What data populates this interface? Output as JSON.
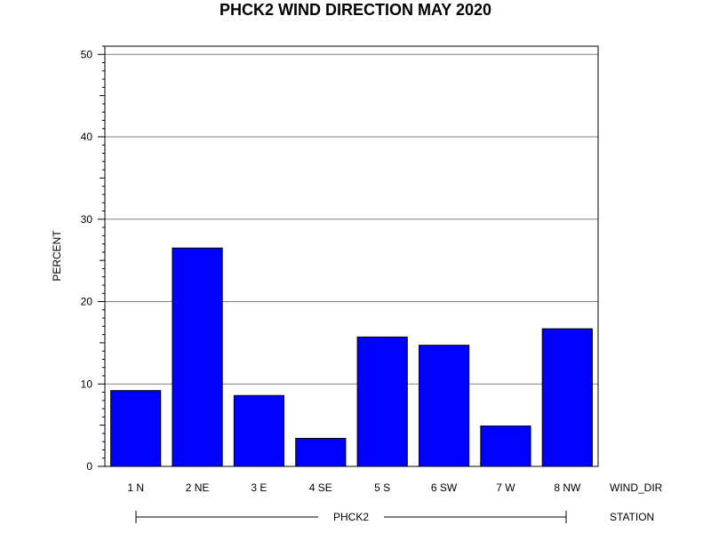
{
  "chart_data": {
    "type": "bar",
    "title": "PHCK2 WIND DIRECTION MAY 2020",
    "ylabel": "PERCENT",
    "xlabel": "WIND_DIR",
    "group_axis_label": "STATION",
    "group_name": "PHCK2",
    "categories": [
      "1 N",
      "2 NE",
      "3 E",
      "4 SE",
      "5 S",
      "6 SW",
      "7 W",
      "8 NW"
    ],
    "values": [
      9.2,
      26.5,
      8.6,
      3.4,
      15.7,
      14.7,
      4.9,
      16.7
    ],
    "ylim": [
      0,
      51
    ],
    "yticks": [
      0,
      10,
      20,
      30,
      40,
      50
    ],
    "grid": true,
    "colors": {
      "bar_fill": "#0000ff",
      "bar_stroke": "#000000",
      "grid": "#808080",
      "axis": "#000000"
    }
  }
}
